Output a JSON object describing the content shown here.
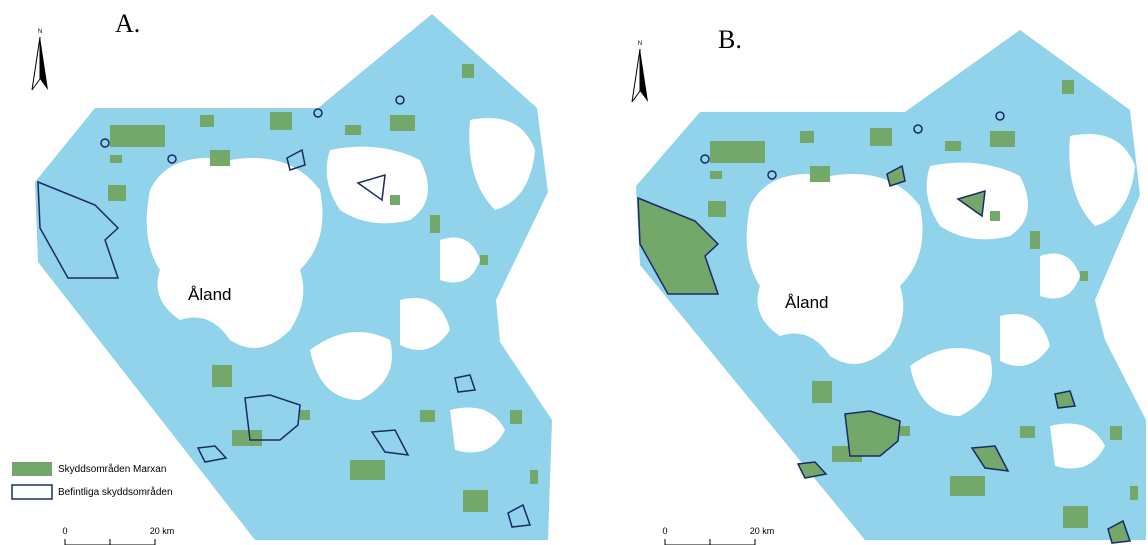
{
  "panels": [
    {
      "label": "A.",
      "north": "N",
      "place": "Åland",
      "scale": [
        "0",
        "20 km"
      ]
    },
    {
      "label": "B.",
      "north": "N",
      "place": "Åland",
      "scale": [
        "0",
        "20 km"
      ]
    }
  ],
  "legend": {
    "items": [
      "Skyddsområden Marxan",
      "Befintliga skyddsområden"
    ]
  }
}
